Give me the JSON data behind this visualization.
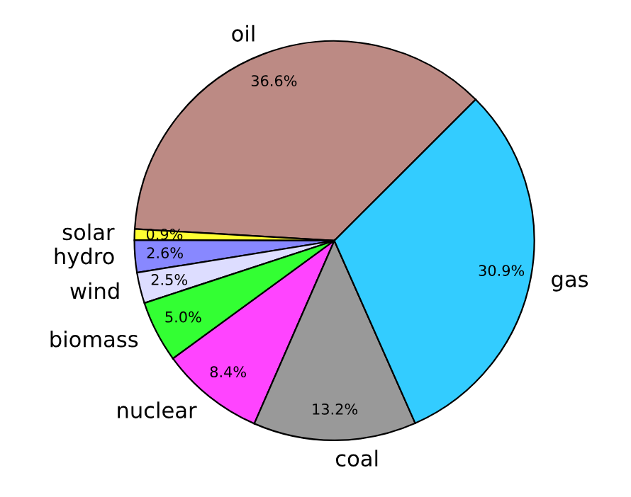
{
  "chart_data": {
    "type": "pie",
    "categories": [
      "oil",
      "solar",
      "hydro",
      "wind",
      "biomass",
      "nuclear",
      "coal",
      "gas"
    ],
    "values": [
      36.6,
      0.9,
      2.6,
      2.5,
      5.0,
      8.4,
      13.2,
      30.9
    ],
    "value_labels": [
      "36.6%",
      "0.9%",
      "2.6%",
      "2.5%",
      "5.0%",
      "8.4%",
      "13.2%",
      "30.9%"
    ],
    "colors": [
      "#bc8a84",
      "#ffff33",
      "#8888ff",
      "#ddddff",
      "#33ff33",
      "#ff44ff",
      "#999999",
      "#33ccff"
    ]
  }
}
